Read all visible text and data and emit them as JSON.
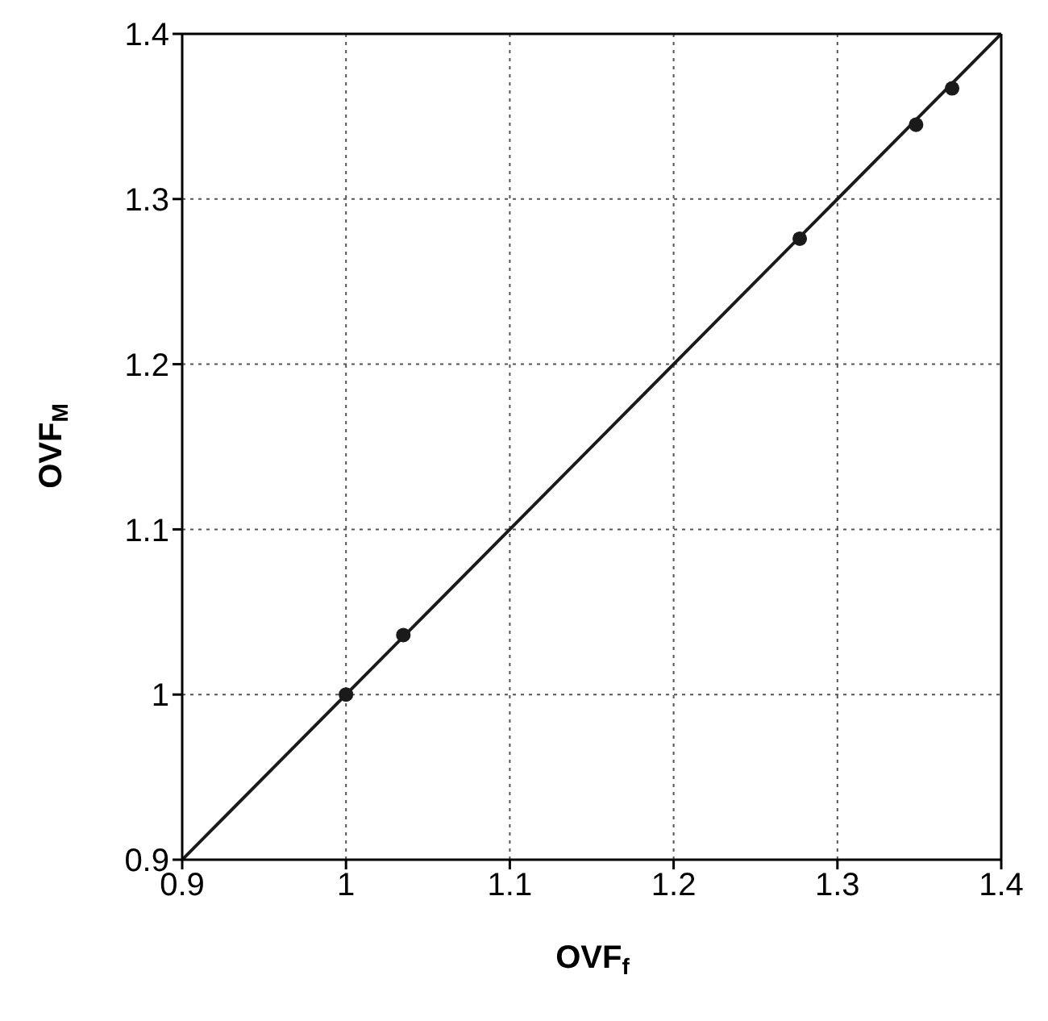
{
  "chart_data": {
    "type": "scatter",
    "xlabel": "OVF$_{f}$",
    "ylabel": "OVF$_{M}$",
    "xlim": [
      0.9,
      1.4
    ],
    "ylim": [
      0.9,
      1.4
    ],
    "xticks": [
      0.9,
      1,
      1.1,
      1.2,
      1.3,
      1.4
    ],
    "yticks": [
      0.9,
      1,
      1.1,
      1.2,
      1.3,
      1.4
    ],
    "grid": true,
    "marker": "circle",
    "series": [
      {
        "color": "#1a1a1a",
        "x": [
          1,
          1.035,
          1.277,
          1.348,
          1.37
        ],
        "values": [
          1,
          1.036,
          1.276,
          1.345,
          1.367
        ]
      },
      {
        "type": "line",
        "color": "#1a1a1a",
        "marker": "none",
        "x": [
          0.9,
          1.4
        ],
        "values": [
          0.9,
          1.4
        ]
      }
    ]
  }
}
